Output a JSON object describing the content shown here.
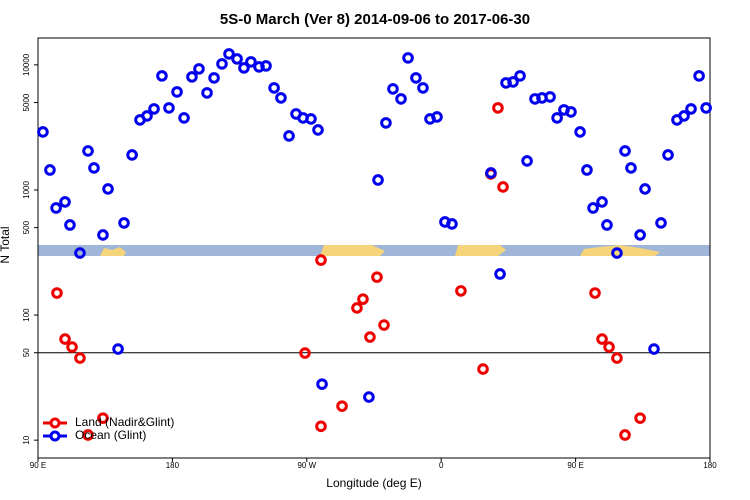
{
  "chart_data": {
    "type": "scatter",
    "title": "5S-0 March (Ver 8)   2014-09-06 to 2017-06-30",
    "x_label": "Longitude (deg E)",
    "y_label": "N Total",
    "log_y": true,
    "hline": 50,
    "legend_position": "bottom-left",
    "xlim": [
      90,
      540
    ],
    "ylim": [
      7.2,
      16400
    ],
    "xticks": [
      {
        "value": 90,
        "label": "90 E"
      },
      180,
      {
        "value": 270,
        "label": "90 W"
      },
      {
        "value": 360,
        "label": "0"
      },
      {
        "value": 450,
        "label": "90 E"
      },
      {
        "value": 540,
        "label": "180"
      }
    ],
    "yticks": [
      10,
      50,
      100,
      500,
      1000,
      5000,
      10000
    ],
    "series": [
      {
        "name": "Land (Nadir&Glint)",
        "color": "#ee0000",
        "x": [
          102.7,
          108.1,
          112.8,
          118.1,
          123.5,
          133.5,
          268.8,
          279.5,
          279.5,
          293.6,
          303.6,
          307.6,
          312.3,
          317.0,
          321.7,
          373.2,
          388.0,
          393.3,
          398.0,
          401.4,
          463.0,
          467.7,
          472.4,
          477.7,
          483.1,
          493.2
        ],
        "values": [
          150,
          64.3,
          55.5,
          45.3,
          11.0,
          15.0,
          49.7,
          275,
          12.9,
          18.7,
          114,
          134,
          66.7,
          201,
          83.2,
          156,
          37.0,
          1343,
          4529,
          1057,
          150,
          64.3,
          55.5,
          45.3,
          11.0,
          15.0
        ]
      },
      {
        "name": "Ocean (Glint)",
        "color": "#0000ee",
        "x": [
          93.3,
          98.0,
          102.1,
          108.1,
          111.4,
          118.1,
          123.5,
          127.5,
          133.5,
          136.9,
          143.6,
          147.6,
          153.0,
          158.3,
          163.0,
          167.7,
          173.0,
          177.7,
          183.1,
          187.8,
          193.1,
          197.8,
          203.2,
          207.9,
          213.2,
          217.9,
          223.3,
          227.9,
          232.6,
          238.0,
          242.7,
          248.1,
          252.7,
          258.1,
          262.8,
          267.5,
          272.8,
          277.5,
          280.2,
          311.6,
          317.7,
          323.0,
          327.7,
          333.1,
          337.8,
          343.1,
          347.8,
          352.5,
          357.2,
          362.5,
          367.2,
          393.3,
          399.4,
          403.4,
          408.1,
          412.8,
          417.5,
          422.8,
          427.5,
          432.9,
          437.6,
          442.2,
          446.9,
          453.0,
          457.6,
          461.7,
          467.7,
          471.0,
          477.7,
          483.1,
          487.1,
          493.2,
          496.5,
          502.5,
          507.2,
          511.9,
          517.9,
          522.6,
          527.3,
          532.7,
          537.4
        ],
        "values": [
          2911,
          1445,
          718,
          802,
          525,
          313,
          2051,
          1500,
          437,
          1019,
          53.5,
          545,
          1905,
          3631,
          3908,
          4446,
          8166,
          4529,
          6081,
          3767,
          8017,
          9290,
          5970,
          7870,
          10185,
          12246,
          11169,
          9462,
          10568,
          9638,
          9817,
          6546,
          5445,
          2704,
          4055,
          3767,
          3698,
          3020,
          28.05,
          22.1,
          1202,
          3436,
          6427,
          5346,
          11376,
          7870,
          6546,
          3698,
          3837,
          555,
          535,
          1368,
          213,
          7178,
          7311,
          8166,
          1706,
          5346,
          5445,
          5546,
          3767,
          4365,
          4207,
          2911,
          1445,
          718,
          802,
          525,
          313,
          2051,
          1500,
          437,
          1019,
          53.5,
          545,
          1905,
          3631,
          3908,
          4446,
          8166,
          4529
        ]
      }
    ]
  }
}
